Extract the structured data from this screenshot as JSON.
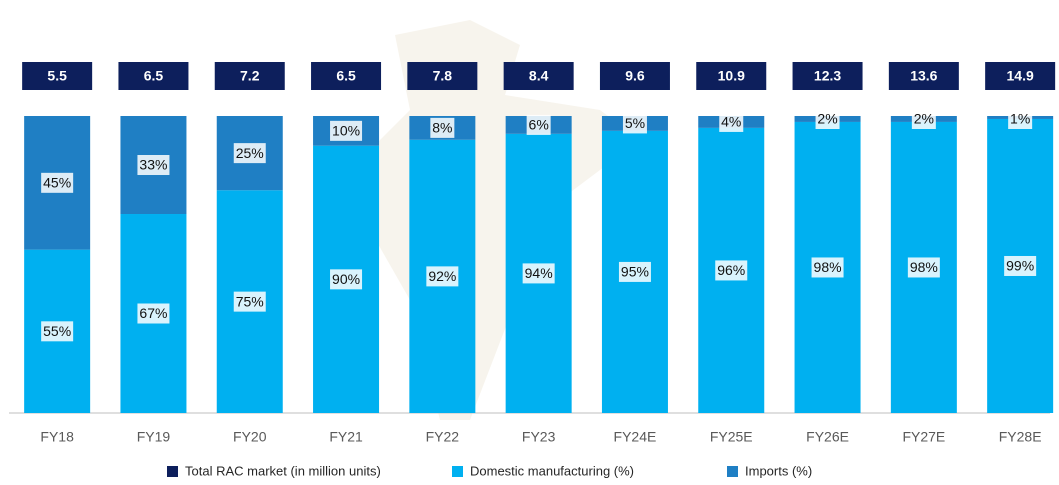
{
  "chart_data": {
    "type": "bar",
    "categories": [
      "FY18",
      "FY19",
      "FY20",
      "FY21",
      "FY22",
      "FY23",
      "FY24E",
      "FY25E",
      "FY26E",
      "FY27E",
      "FY28E"
    ],
    "totals": {
      "name": "Total RAC market (in million units)",
      "color": "#0d1f5c",
      "values": [
        5.5,
        6.5,
        7.2,
        6.5,
        7.8,
        8.4,
        9.6,
        10.9,
        12.3,
        13.6,
        14.9
      ]
    },
    "series": [
      {
        "name": "Domestic manufacturing (%)",
        "color": "#00b0f0",
        "values": [
          55,
          67,
          75,
          90,
          92,
          94,
          95,
          96,
          98,
          98,
          99
        ],
        "value_labels": [
          "55%",
          "67%",
          "75%",
          "90%",
          "92%",
          "94%",
          "95%",
          "96%",
          "98%",
          "98%",
          "99%"
        ]
      },
      {
        "name": "Imports (%)",
        "color": "#1f7fc4",
        "values": [
          45,
          33,
          25,
          10,
          8,
          6,
          5,
          4,
          2,
          2,
          1
        ],
        "value_labels": [
          "45%",
          "33%",
          "25%",
          "10%",
          "8%",
          "6%",
          "5%",
          "4%",
          "2%",
          "2%",
          "1%"
        ]
      }
    ]
  }
}
